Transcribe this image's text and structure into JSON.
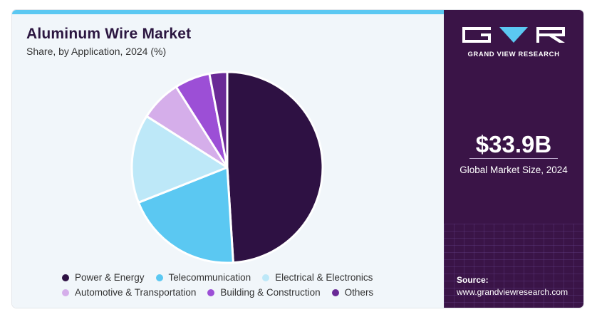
{
  "header": {
    "title": "Aluminum Wire Market",
    "subtitle": "Share, by Application, 2024 (%)"
  },
  "brand": {
    "name": "GRAND VIEW RESEARCH",
    "accent": "#5bc8f2",
    "panel_color": "#3a1447"
  },
  "stat": {
    "value": "$33.9B",
    "label": "Global Market Size, 2024"
  },
  "source": {
    "label": "Source:",
    "url": "www.grandviewresearch.com"
  },
  "chart_data": {
    "type": "pie",
    "title": "Aluminum Wire Market",
    "legend_position": "bottom",
    "slices": [
      {
        "name": "Power & Energy",
        "value": 49,
        "color": "#2e1143"
      },
      {
        "name": "Telecommunication",
        "value": 20,
        "color": "#5bc8f2"
      },
      {
        "name": "Electrical & Electronics",
        "value": 15,
        "color": "#bde8f8"
      },
      {
        "name": "Automotive & Transportation",
        "value": 7,
        "color": "#d5aeea"
      },
      {
        "name": "Building & Construction",
        "value": 6,
        "color": "#9c4fd6"
      },
      {
        "name": "Others",
        "value": 3,
        "color": "#6a2a96"
      }
    ]
  }
}
